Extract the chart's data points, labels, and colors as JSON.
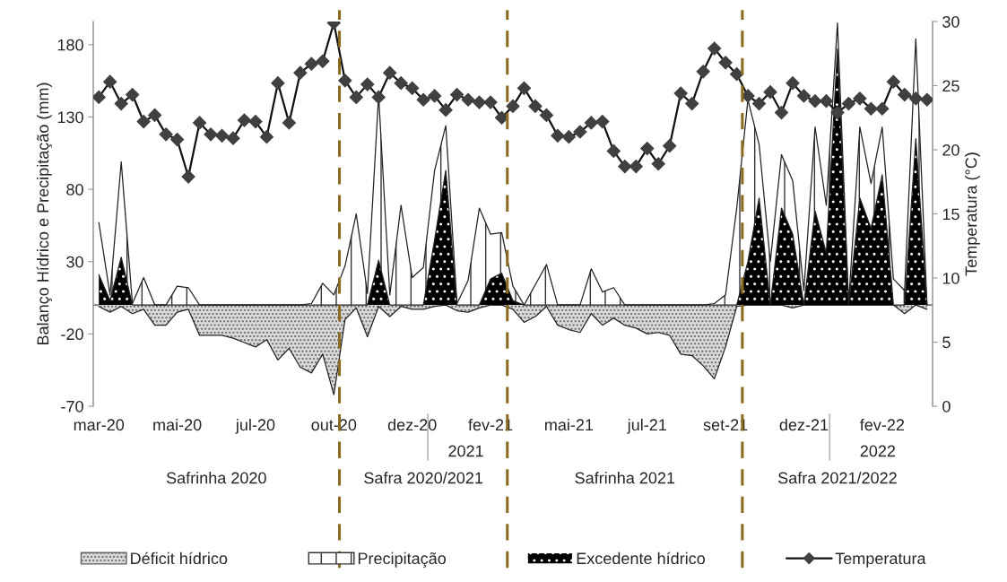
{
  "chart_data": {
    "type": "area",
    "ylabel": "Balanço Hídrico e Precipitação (mm)",
    "y2label": "Temperatura (°C)",
    "categories": [
      "mar-20",
      null,
      null,
      null,
      null,
      null,
      null,
      "mai-20",
      null,
      null,
      null,
      null,
      null,
      null,
      "jul-20",
      null,
      null,
      null,
      null,
      null,
      null,
      "out-20",
      null,
      null,
      null,
      null,
      null,
      null,
      "dez-20",
      null,
      null,
      null,
      null,
      null,
      null,
      "fev-21",
      null,
      null,
      null,
      null,
      null,
      null,
      "mai-21",
      null,
      null,
      null,
      null,
      null,
      null,
      "jul-21",
      null,
      null,
      null,
      null,
      null,
      null,
      "set-21",
      null,
      null,
      null,
      null,
      null,
      null,
      "dez-21",
      null,
      null,
      null,
      null,
      null,
      null,
      "fev-22",
      null,
      null,
      null,
      null
    ],
    "series": [
      {
        "name": "Déficit hídrico",
        "color": "#d9d9d9",
        "values": [
          -1,
          -5,
          -1,
          -6,
          -3,
          -14,
          -14,
          -5,
          -3,
          -21,
          -21,
          -21,
          -23,
          -26,
          -29,
          -24,
          -38,
          -30,
          -43,
          -47,
          -34,
          -62,
          -10,
          -2,
          -22,
          -1,
          -8,
          -1,
          -3,
          -3,
          -1,
          0,
          -4,
          -5,
          -2,
          0,
          0,
          -3,
          -12,
          -8,
          -1,
          -14,
          -17,
          -19,
          -6,
          -14,
          -9,
          -14,
          -16,
          -20,
          -19,
          -21,
          -34,
          -35,
          -42,
          -51,
          -29,
          -1,
          0,
          0,
          0,
          0,
          -2,
          0,
          0,
          0,
          0,
          0,
          0,
          0,
          0,
          0,
          -6,
          0,
          -3
        ]
      },
      {
        "name": "Precipitação",
        "color": "#ffffff",
        "values": [
          57,
          7,
          99,
          1,
          19,
          0,
          0,
          13,
          12,
          0,
          0,
          0,
          0,
          0,
          0,
          0,
          0,
          0,
          0,
          1,
          15,
          7,
          27,
          63,
          8,
          145,
          7,
          69,
          19,
          26,
          93,
          124,
          1,
          17,
          67,
          49,
          50,
          13,
          0,
          14,
          28,
          0,
          0,
          0,
          25,
          9,
          12,
          0,
          0,
          0,
          0,
          0,
          0,
          0,
          0,
          1,
          7,
          67,
          142,
          111,
          30,
          104,
          86,
          10,
          123,
          69,
          195,
          1,
          123,
          84,
          123,
          18,
          10,
          184,
          0
        ]
      },
      {
        "name": "Excedente hídrico",
        "color": "#000000",
        "values": [
          21,
          3,
          33,
          0,
          0,
          0,
          0,
          0,
          0,
          0,
          0,
          0,
          0,
          0,
          0,
          0,
          0,
          0,
          0,
          0,
          0,
          0,
          0,
          0,
          0,
          31,
          0,
          0,
          0,
          0,
          45,
          93,
          0,
          0,
          0,
          18,
          22,
          3,
          0,
          0,
          0,
          0,
          0,
          0,
          0,
          0,
          0,
          0,
          0,
          0,
          0,
          0,
          0,
          0,
          0,
          0,
          0,
          0,
          30,
          74,
          0,
          67,
          49,
          0,
          65,
          36,
          177,
          0,
          74,
          53,
          90,
          0,
          0,
          115,
          0
        ]
      },
      {
        "name": "Temperatura",
        "type": "line",
        "axis": "y2",
        "color": "#404040",
        "marker": "diamond",
        "values": [
          24.1,
          25.3,
          23.6,
          24.3,
          22.2,
          22.7,
          21.2,
          20.8,
          17.9,
          22.1,
          21.2,
          21.1,
          20.9,
          22.3,
          22.2,
          21.0,
          25.2,
          22.1,
          26.0,
          26.7,
          26.9,
          29.9,
          25.4,
          24.1,
          25.1,
          24.1,
          26.0,
          25.2,
          24.8,
          23.9,
          24.2,
          23.1,
          24.3,
          23.9,
          23.7,
          23.7,
          22.5,
          23.4,
          24.8,
          23.4,
          22.7,
          21.1,
          21.0,
          21.4,
          22.1,
          22.2,
          19.9,
          18.7,
          18.7,
          20.1,
          18.9,
          20.3,
          24.4,
          23.6,
          26.1,
          27.9,
          26.8,
          25.9,
          24.2,
          23.6,
          24.5,
          22.9,
          25.2,
          24.2,
          23.8,
          23.8,
          22.9,
          23.6,
          24.0,
          23.2,
          23.2,
          25.3,
          24.3,
          24.0,
          23.9
        ]
      }
    ],
    "ylim": [
      -70,
      196
    ],
    "yticks": [
      -70,
      -20,
      30,
      80,
      130,
      180
    ],
    "y2lim": [
      0,
      30
    ],
    "y2ticks": [
      0,
      5,
      10,
      15,
      20,
      25,
      30
    ],
    "annotations": [
      "2021",
      "2022",
      "Safrinha 2020",
      "Safra 2020/2021",
      "Safrinha 2021",
      "Safra 2021/2022"
    ],
    "grid": false,
    "legend": "bottom"
  }
}
